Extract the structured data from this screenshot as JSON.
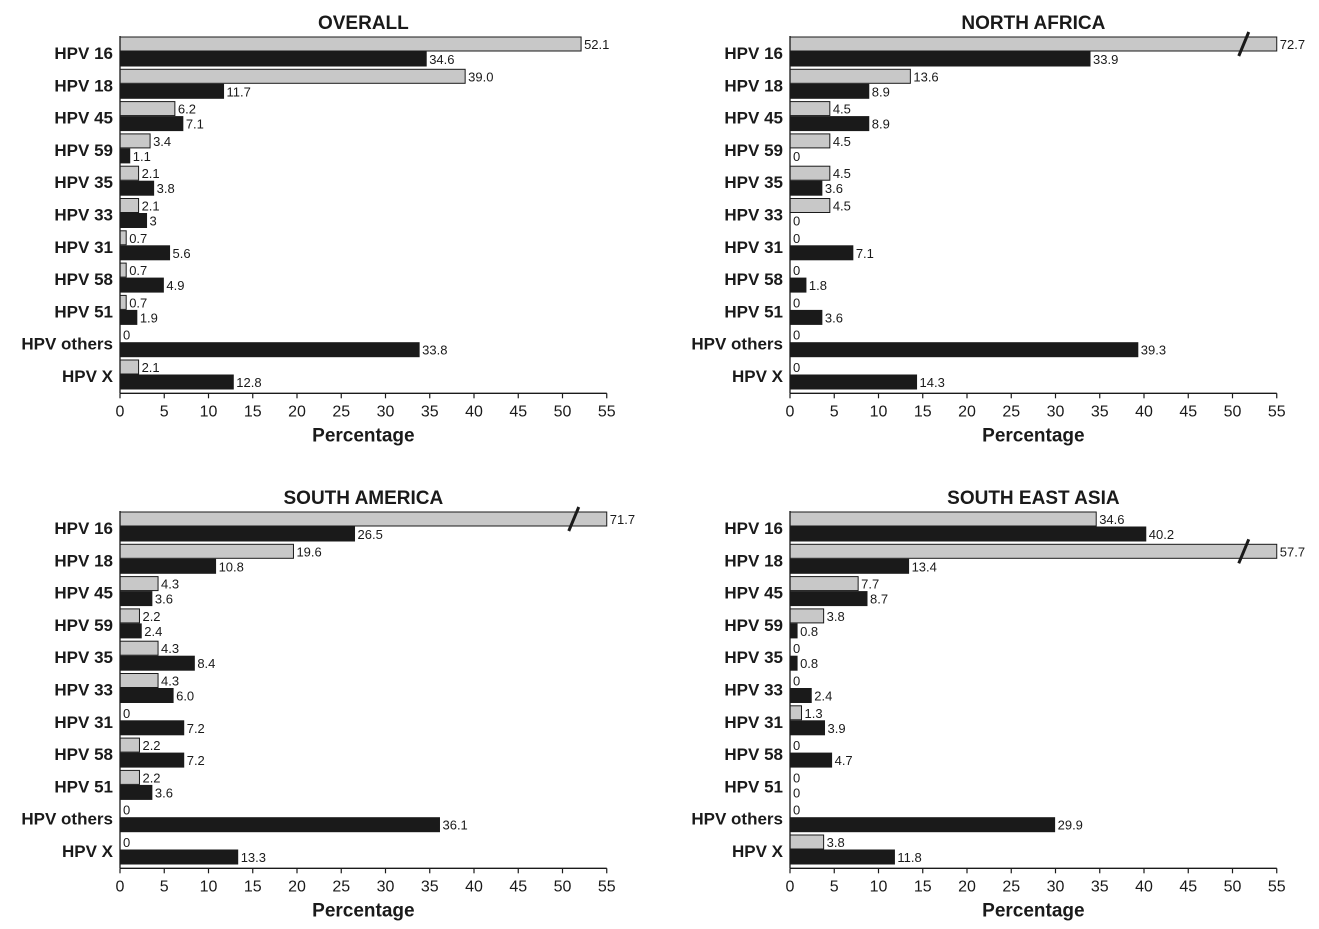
{
  "chart_data": [
    {
      "type": "bar",
      "orientation": "horizontal",
      "title": "OVERALL",
      "xlabel": "Percentage",
      "xlim": [
        0,
        55
      ],
      "xticks": [
        0,
        5,
        10,
        15,
        20,
        25,
        30,
        35,
        40,
        45,
        50,
        55
      ],
      "categories": [
        "HPV 16",
        "HPV 18",
        "HPV 45",
        "HPV 59",
        "HPV 35",
        "HPV 33",
        "HPV 31",
        "HPV 58",
        "HPV 51",
        "HPV others",
        "HPV X"
      ],
      "series": [
        {
          "color": "#c8c8c8",
          "values": [
            52.1,
            39.0,
            6.2,
            3.4,
            2.1,
            2.1,
            0.7,
            0.7,
            0.7,
            0,
            2.1
          ],
          "labels": [
            "52.1",
            "39.0",
            "6.2",
            "3.4",
            "2.1",
            "2.1",
            "0.7",
            "0.7",
            "0.7",
            "0",
            "2.1"
          ]
        },
        {
          "color": "#1a1a1a",
          "values": [
            34.6,
            11.7,
            7.1,
            1.1,
            3.8,
            3,
            5.6,
            4.9,
            1.9,
            33.8,
            12.8
          ],
          "labels": [
            "34.6",
            "11.7",
            "7.1",
            "1.1",
            "3.8",
            "3",
            "5.6",
            "4.9",
            "1.9",
            "33.8",
            "12.8"
          ]
        }
      ],
      "axis_break": false,
      "grid": false
    },
    {
      "type": "bar",
      "orientation": "horizontal",
      "title": "NORTH AFRICA",
      "xlabel": "Percentage",
      "xlim": [
        0,
        55
      ],
      "xticks": [
        0,
        5,
        10,
        15,
        20,
        25,
        30,
        35,
        40,
        45,
        50,
        55
      ],
      "categories": [
        "HPV 16",
        "HPV 18",
        "HPV 45",
        "HPV 59",
        "HPV 35",
        "HPV 33",
        "HPV 31",
        "HPV 58",
        "HPV 51",
        "HPV others",
        "HPV X"
      ],
      "series": [
        {
          "color": "#c8c8c8",
          "values": [
            72.7,
            13.6,
            4.5,
            4.5,
            4.5,
            4.5,
            0,
            0,
            0,
            0,
            0
          ],
          "labels": [
            "72.7",
            "13.6",
            "4.5",
            "4.5",
            "4.5",
            "4.5",
            "0",
            "0",
            "0",
            "0",
            "0"
          ]
        },
        {
          "color": "#1a1a1a",
          "values": [
            33.9,
            8.9,
            8.9,
            0,
            3.6,
            0,
            7.1,
            1.8,
            3.6,
            39.3,
            14.3
          ],
          "labels": [
            "33.9",
            "8.9",
            "8.9",
            "0",
            "3.6",
            "0",
            "7.1",
            "1.8",
            "3.6",
            "39.3",
            "14.3"
          ]
        }
      ],
      "axis_break": true,
      "grid": false
    },
    {
      "type": "bar",
      "orientation": "horizontal",
      "title": "SOUTH AMERICA",
      "xlabel": "Percentage",
      "xlim": [
        0,
        55
      ],
      "xticks": [
        0,
        5,
        10,
        15,
        20,
        25,
        30,
        35,
        40,
        45,
        50,
        55
      ],
      "categories": [
        "HPV 16",
        "HPV 18",
        "HPV 45",
        "HPV 59",
        "HPV 35",
        "HPV 33",
        "HPV 31",
        "HPV 58",
        "HPV 51",
        "HPV others",
        "HPV X"
      ],
      "series": [
        {
          "color": "#c8c8c8",
          "values": [
            71.7,
            19.6,
            4.3,
            2.2,
            4.3,
            4.3,
            0,
            2.2,
            2.2,
            0,
            0
          ],
          "labels": [
            "71.7",
            "19.6",
            "4.3",
            "2.2",
            "4.3",
            "4.3",
            "0",
            "2.2",
            "2.2",
            "0",
            "0"
          ]
        },
        {
          "color": "#1a1a1a",
          "values": [
            26.5,
            10.8,
            3.6,
            2.4,
            8.4,
            6.0,
            7.2,
            7.2,
            3.6,
            36.1,
            13.3
          ],
          "labels": [
            "26.5",
            "10.8",
            "3.6",
            "2.4",
            "8.4",
            "6.0",
            "7.2",
            "7.2",
            "3.6",
            "36.1",
            "13.3"
          ]
        }
      ],
      "axis_break": true,
      "grid": false
    },
    {
      "type": "bar",
      "orientation": "horizontal",
      "title": "SOUTH EAST ASIA",
      "xlabel": "Percentage",
      "xlim": [
        0,
        55
      ],
      "xticks": [
        0,
        5,
        10,
        15,
        20,
        25,
        30,
        35,
        40,
        45,
        50,
        55
      ],
      "categories": [
        "HPV 16",
        "HPV 18",
        "HPV 45",
        "HPV 59",
        "HPV 35",
        "HPV 33",
        "HPV 31",
        "HPV 58",
        "HPV 51",
        "HPV others",
        "HPV X"
      ],
      "series": [
        {
          "color": "#c8c8c8",
          "values": [
            34.6,
            57.7,
            7.7,
            3.8,
            0,
            0,
            1.3,
            0,
            0,
            0,
            3.8
          ],
          "labels": [
            "34.6",
            "57.7",
            "7.7",
            "3.8",
            "0",
            "0",
            "1.3",
            "0",
            "0",
            "0",
            "3.8"
          ]
        },
        {
          "color": "#1a1a1a",
          "values": [
            40.2,
            13.4,
            8.7,
            0.8,
            0.8,
            2.4,
            3.9,
            4.7,
            0,
            29.9,
            11.8
          ],
          "labels": [
            "40.2",
            "13.4",
            "8.7",
            "0.8",
            "0.8",
            "2.4",
            "3.9",
            "4.7",
            "0",
            "29.9",
            "11.8"
          ]
        }
      ],
      "axis_break": true,
      "grid": false
    }
  ]
}
